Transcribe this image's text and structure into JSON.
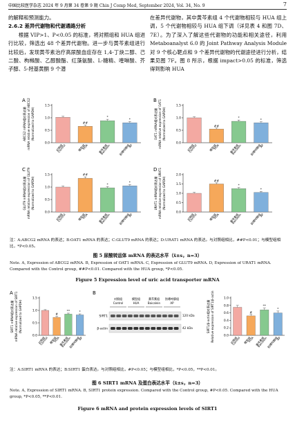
{
  "header": {
    "journal": "中国比较医学杂志 2024 年 9 月第 34 卷第 9 期   Chin J Comp Med, September 2024, Vol. 34, No. 9",
    "page": "7"
  },
  "body": {
    "left": [
      "的解释和预测能力。",
      "2.6.2  差异代谢物和代谢通路分析",
      "根据 VIP>1、P<0.05 的标准，将对照组和 HUA 组进行比较，筛选出 48 个差异代谢物。进一步与黄芩素组进行比较后，发现黄芩素治疗高尿酸血症存在 1,4-丁炔二醇、己二酸、枸橼酸、乙醇酸酯、红藻氨酸、L-糖精、喹啉酸、芥子醇、5-羟基黄酮 9 个潜"
    ],
    "right": [
      "在差异代谢物，其中黄芩素组 4 个代谢物相较与 HUA 组上调，5 个代谢物相较与 HUA 组下调（详见表 4 和图 7D、7E）。为了深入了解这些代谢物的功能和相关途径，利用 Metaboanalyst 6.0 的 Joint Pathway Analysis Module 对 9 个核心靶点和 9 个差异代谢物的代谢途径进行分析，结果见图 7F。图 8 所示，根据 impact>0.05 的标准，筛选得到影响 HUA"
    ]
  },
  "figure5": {
    "panels": [
      {
        "type": "bar",
        "letter": "A",
        "ylabel": [
          "ABCG2 mRNA相对表达量",
          "mRNA relative expression of ABCG2",
          "(Normalized to GAPDH)"
        ],
        "categories": [
          [
            "对照组",
            "Control"
          ],
          [
            "模型组",
            "HUA"
          ],
          [
            "黄芩素组",
            "Baicalein"
          ],
          [
            "别嘌呤醇组",
            "AP"
          ]
        ],
        "values": [
          1.02,
          0.66,
          0.88,
          0.8
        ],
        "errors": [
          0.04,
          0.05,
          0.06,
          0.05
        ],
        "significance": [
          null,
          "##",
          "*",
          "*"
        ],
        "colors": [
          "#f3a9a2",
          "#f6a85a",
          "#86c98f",
          "#7fb0dc"
        ],
        "ylim": [
          0,
          1.5
        ],
        "yticks": [
          {
            "value": 0,
            "label": "0.0"
          },
          0.5,
          {
            "value": 1,
            "label": "1.0"
          },
          1.5
        ]
      },
      {
        "type": "bar",
        "letter": "B",
        "ylabel": [
          "OAT1 mRNA相对表达量",
          "mRNA relative expression of OAT1",
          "(Normalized to GAPDH)"
        ],
        "categories": [
          [
            "对照组",
            "Control"
          ],
          [
            "模型组",
            "HUA"
          ],
          [
            "黄芩素组",
            "Baicalein"
          ],
          [
            "别嘌呤醇组",
            "AP"
          ]
        ],
        "values": [
          1.0,
          0.55,
          0.86,
          0.8
        ],
        "errors": [
          0.04,
          0.04,
          0.05,
          0.04
        ],
        "significance": [
          null,
          "##",
          "*",
          "*"
        ],
        "colors": [
          "#f3a9a2",
          "#f6a85a",
          "#86c98f",
          "#7fb0dc"
        ],
        "ylim": [
          0,
          1.5
        ],
        "yticks": [
          {
            "value": 0,
            "label": "0.0"
          },
          0.5,
          {
            "value": 1,
            "label": "1.0"
          },
          1.5
        ]
      },
      {
        "type": "bar",
        "letter": "C",
        "ylabel": [
          "GLUT9 mRNA相对表达量",
          "mRNA relative expression of GLUT9",
          "(Normalized to GAPDH)"
        ],
        "categories": [
          [
            "对照组",
            "Control"
          ],
          [
            "模型组",
            "HUA"
          ],
          [
            "黄芩素组",
            "Baicalein"
          ],
          [
            "别嘌呤醇组",
            "AP"
          ]
        ],
        "values": [
          1.0,
          1.35,
          0.97,
          1.05
        ],
        "errors": [
          0.04,
          0.06,
          0.05,
          0.05
        ],
        "significance": [
          null,
          "##",
          "*",
          "*"
        ],
        "colors": [
          "#f3a9a2",
          "#f6a85a",
          "#86c98f",
          "#7fb0dc"
        ],
        "ylim": [
          0,
          1.5
        ],
        "yticks": [
          {
            "value": 0,
            "label": "0.0"
          },
          0.5,
          {
            "value": 1,
            "label": "1.0"
          },
          1.5
        ]
      },
      {
        "type": "bar",
        "letter": "D",
        "ylabel": [
          "URAT1 mRNA相对表达量",
          "mRNA relative expression of URAT1",
          "(Normalized to GAPDH)"
        ],
        "categories": [
          [
            "对照组",
            "Control"
          ],
          [
            "模型组",
            "HUA"
          ],
          [
            "黄芩素组",
            "Baicalein"
          ],
          [
            "别嘌呤醇组",
            "AP"
          ]
        ],
        "values": [
          1.0,
          1.5,
          1.25,
          1.05
        ],
        "errors": [
          0.05,
          0.06,
          0.06,
          0.05
        ],
        "significance": [
          null,
          "##",
          "*",
          "*"
        ],
        "colors": [
          "#f3a9a2",
          "#f6a85a",
          "#86c98f",
          "#7fb0dc"
        ],
        "ylim": [
          0,
          2
        ],
        "yticks": [
          {
            "value": 0,
            "label": "0.0"
          },
          0.5,
          {
            "value": 1,
            "label": "1.0"
          },
          1.5,
          {
            "value": 2,
            "label": "2.0"
          }
        ]
      }
    ],
    "note_cn": "注：A:ABCG2 mRNA 的表达；B:OAT1 mRNA 的表达；C:GLUT9 mRNA 的表达；D:URAT1 mRNA 的表达。与对照组相比，##P<0.01；与模型组相比，*P<0.05。",
    "caption_cn": "图 5   尿酸转运体 mRNA 的表达水平（x̄±s，n=3）",
    "note_en": "Note. A, Expression of ABCG2 mRNA. B, Expression of OAT1 mRNA. C, Expression of GLUT9 mRNA. D, Expression of URAT1 mRNA. Compared with the Control group, ##P<0.01. Compared with the HUA group, *P<0.05.",
    "caption_en": "Figure 5   Expression level of uric acid transporter mRNA"
  },
  "figure6": {
    "panel_a": {
      "type": "bar",
      "letter": "A",
      "ylabel": [
        "SIRT1 mRNA相对表达量",
        "mRNA relative expression of SIRT1",
        "(Normalized to GAPDH)"
      ],
      "categories": [
        [
          "对照组",
          "Control"
        ],
        [
          "模型组",
          "HUA"
        ],
        [
          "黄芩素组",
          "Baicalein"
        ],
        [
          "别嘌呤醇组",
          "AP"
        ]
      ],
      "values": [
        1.0,
        0.72,
        0.85,
        0.82
      ],
      "errors": [
        0.03,
        0.04,
        0.04,
        0.04
      ],
      "significance": [
        null,
        "#",
        "**",
        "*"
      ],
      "colors": [
        "#f3a9a2",
        "#f6a85a",
        "#86c98f",
        "#7fb0dc"
      ],
      "ylim": [
        0,
        1.5
      ],
      "yticks": [
        {
          "value": 0,
          "label": "0.0"
        },
        0.5,
        {
          "value": 1,
          "label": "1.0"
        },
        1.5
      ]
    },
    "blot": {
      "letter": "B",
      "groups": [
        [
          "对照组",
          "Control"
        ],
        [
          "模型组",
          "HUA"
        ],
        [
          "黄芩素组",
          "Baicalein"
        ],
        [
          "别嘌呤醇组",
          "AP"
        ]
      ],
      "bands": [
        {
          "name": "SIRT1",
          "size": "120 kDa"
        },
        {
          "name": "β-actin",
          "size": "42 kDa"
        }
      ]
    },
    "panel_b": {
      "type": "bar",
      "ylabel": [
        "SIRT1/β-actin相对表达量",
        "Relative expression of SIRT1/β-actin"
      ],
      "categories": [
        [
          "对照组",
          "Control"
        ],
        [
          "模型组",
          "HUA"
        ],
        [
          "黄芩素组",
          "Baicalein"
        ],
        [
          "别嘌呤醇组",
          "AP"
        ]
      ],
      "values": [
        0.75,
        0.52,
        0.68,
        0.6
      ],
      "errors": [
        0.05,
        0.04,
        0.05,
        0.05
      ],
      "significance": [
        null,
        "#",
        "**",
        "*"
      ],
      "colors": [
        "#f3a9a2",
        "#f6a85a",
        "#86c98f",
        "#7fb0dc"
      ],
      "ylim": [
        0,
        1
      ],
      "yticks": [
        {
          "value": 0,
          "label": "0.0"
        },
        0.2,
        0.4,
        0.6,
        0.8,
        {
          "value": 1,
          "label": "1.0"
        }
      ]
    },
    "note_cn": "注：A:SIRT1 mRNA 的表达；B:SIRT1 蛋白表达。与对照组相比，#P<0.05；与模型组相比，*P<0.05，**P<0.01。",
    "caption_cn": "图 6   SIRT1 mRNA 及蛋白表达水平（x̄±s，n=3）",
    "note_en": "Note. A, Expression of SIRT1 mRNA. B, SIRT1 protein expression. Compared with the Control group, #P<0.05. Compared with the HUA group, *P<0.05, **P<0.01.",
    "caption_en": "Figure 6   mRNA and protein expression levels of SIRT1"
  }
}
